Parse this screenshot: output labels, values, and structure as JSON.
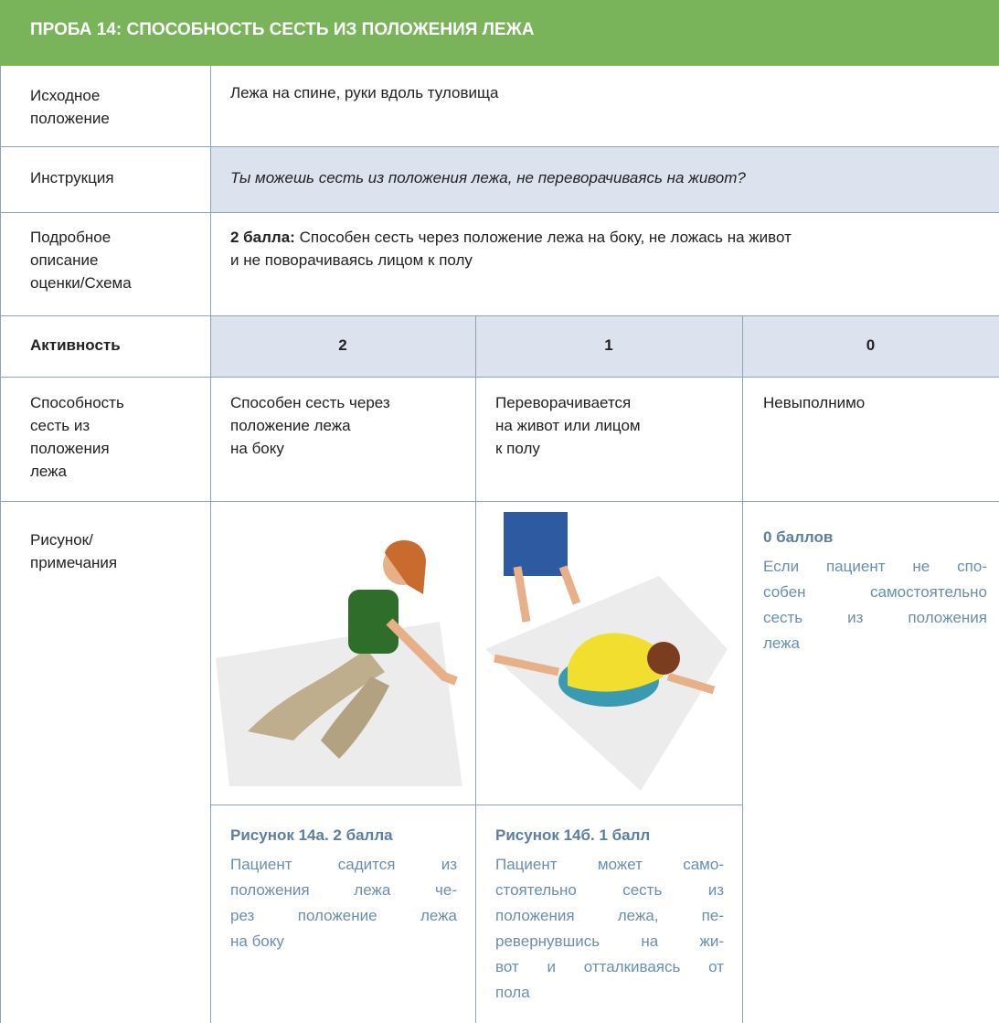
{
  "header": {
    "title": "ПРОБА 14: СПОСОБНОСТЬ СЕСТЬ ИЗ ПОЛОЖЕНИЯ ЛЕЖА"
  },
  "table": {
    "start_position": {
      "label": [
        "Исходное",
        "положение"
      ],
      "value": "Лежа на спине, руки вдоль туловища"
    },
    "instruction": {
      "label": "Инструкция",
      "value": "Ты можешь сесть из положения лежа, не переворачиваясь на живот?"
    },
    "description": {
      "label": [
        "Подробное",
        "описание",
        "оценки/Схема"
      ],
      "score": "2 балла:",
      "text": [
        "Способен сесть через положение лежа на боку, не ложась на живот",
        "и не поворачиваясь лицом к полу"
      ]
    },
    "activity": {
      "label": "Активность",
      "scores": [
        "2",
        "1",
        "0"
      ]
    },
    "ability": {
      "label": [
        "Способность",
        "сесть из",
        "положения",
        "лежа"
      ],
      "cells": [
        [
          "Способен сесть через",
          "положение лежа",
          "на боку"
        ],
        [
          "Переворачивается",
          "на живот или лицом",
          "к полу"
        ],
        [
          "Невыполнимо"
        ]
      ]
    },
    "figures": {
      "label": [
        "Рисунок/",
        "примечания"
      ],
      "figure_a": {
        "title": "Рисунок 14а. 2 балла",
        "lines": [
          "Пациент садится из",
          "положения лежа че-",
          "рез положение лежа",
          "на боку"
        ]
      },
      "figure_b": {
        "title": "Рисунок 14б. 1 балл",
        "lines": [
          "Пациент может само-",
          "стоятельно сесть из",
          "положения лежа, пе-",
          "ревернувшись на жи-",
          "вот и отталкиваясь от",
          "пола"
        ]
      },
      "note": {
        "title": "0 баллов",
        "lines": [
          "Если пациент не спо-",
          "собен самостоятельно",
          "сесть из положения",
          "лежа"
        ]
      }
    }
  }
}
